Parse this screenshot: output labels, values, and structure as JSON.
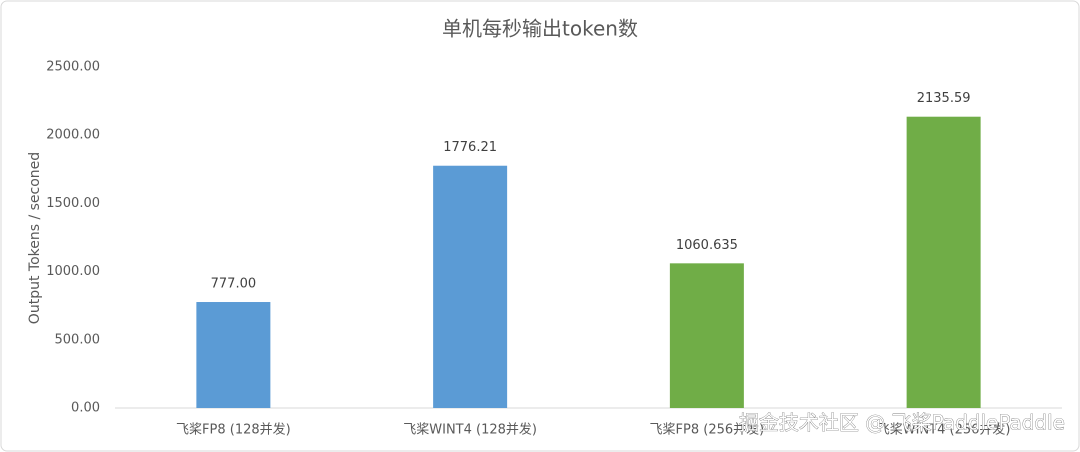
{
  "chart_data": {
    "type": "bar",
    "title": "单机每秒输出token数",
    "y_label": "Output Tokens / seconed",
    "categories": [
      "飞桨FP8 (128并发)",
      "飞桨WINT4 (128并发)",
      "飞桨FP8 (256并发)",
      "飞桨WINT4 (256并发)"
    ],
    "values": [
      777,
      1776.21,
      1060.635,
      2135.59
    ],
    "value_labels": [
      "777.00",
      "1776.21",
      "1060.635",
      "2135.59"
    ],
    "colors": [
      "#5b9bd5",
      "#5b9bd5",
      "#70ad47",
      "#70ad47"
    ],
    "ylim": [
      0,
      2500
    ],
    "yticks": [
      {
        "value": 0,
        "label": "0.00"
      },
      {
        "value": 500,
        "label": "500.00"
      },
      {
        "value": 1000,
        "label": "1000.00"
      },
      {
        "value": 1500,
        "label": "1500.00"
      },
      {
        "value": 2000,
        "label": "2000.00"
      },
      {
        "value": 2500,
        "label": "2500.00"
      }
    ],
    "grid": false
  },
  "watermark": "掘金技术社区 @ 飞桨PaddlePaddle"
}
